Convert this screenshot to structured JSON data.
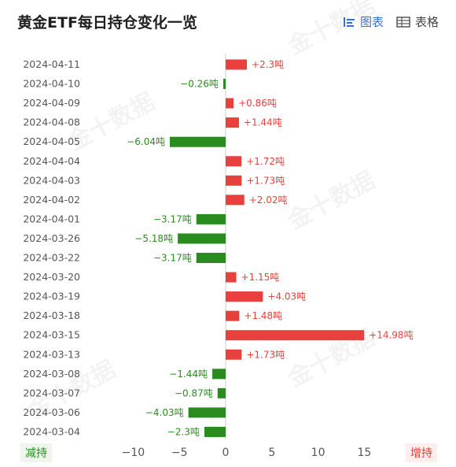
{
  "title": "黄金ETF每日持仓变化一览",
  "toggles": [
    {
      "label": "图表",
      "icon": "chart-icon",
      "active": true
    },
    {
      "label": "表格",
      "icon": "table-icon",
      "active": false
    }
  ],
  "watermark": "金十数据",
  "legend": {
    "left": "减持",
    "right": "增持"
  },
  "colors": {
    "positive": "#e8413d",
    "negative": "#2a8c1f"
  },
  "chart_data": {
    "type": "bar",
    "orientation": "horizontal",
    "categories": [
      "2024-04-11",
      "2024-04-10",
      "2024-04-09",
      "2024-04-08",
      "2024-04-05",
      "2024-04-04",
      "2024-04-03",
      "2024-04-02",
      "2024-04-01",
      "2024-03-26",
      "2024-03-22",
      "2024-03-20",
      "2024-03-19",
      "2024-03-18",
      "2024-03-15",
      "2024-03-13",
      "2024-03-08",
      "2024-03-07",
      "2024-03-06",
      "2024-03-04"
    ],
    "values": [
      2.3,
      -0.26,
      0.86,
      1.44,
      -6.04,
      1.72,
      1.73,
      2.02,
      -3.17,
      -5.18,
      -3.17,
      1.15,
      4.03,
      1.48,
      14.98,
      1.73,
      -1.44,
      -0.87,
      -4.03,
      -2.3
    ],
    "labels": [
      "+2.3吨",
      "−0.26吨",
      "+0.86吨",
      "+1.44吨",
      "−6.04吨",
      "+1.72吨",
      "+1.73吨",
      "+2.02吨",
      "−3.17吨",
      "−5.18吨",
      "−3.17吨",
      "+1.15吨",
      "+4.03吨",
      "+1.48吨",
      "+14.98吨",
      "+1.73吨",
      "−1.44吨",
      "−0.87吨",
      "−4.03吨",
      "−2.3吨"
    ],
    "xticks": [
      "−10",
      "−5",
      "0",
      "5",
      "10",
      "15"
    ],
    "xtick_values": [
      -10,
      -5,
      0,
      5,
      10,
      15
    ],
    "xlim": [
      -12,
      17
    ]
  }
}
